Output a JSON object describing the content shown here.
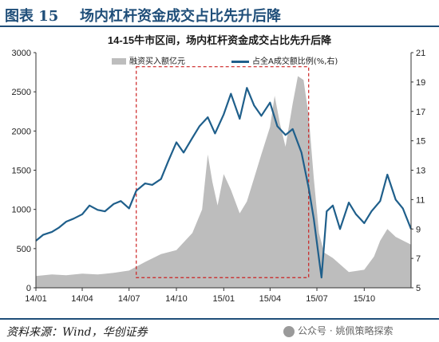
{
  "figure": {
    "number": "图表 15",
    "title": "场内杠杆资金成交占比先升后降",
    "source": "资料来源：Wind，华创证券",
    "watermark": "公众号 · 姚佩策略探索"
  },
  "colors": {
    "area": "#bdbdbd",
    "line": "#1f5f8b",
    "highlight_box": "#cc2222",
    "header": "#1f4e79"
  },
  "icons": [
    "wechat-icon"
  ],
  "chart_data": {
    "type": "area+line",
    "title": "14-15牛市区间，场内杠杆资金成交占比先升后降",
    "x_tick_labels": [
      "14/01",
      "14/04",
      "14/07",
      "14/10",
      "15/01",
      "15/04",
      "15/07",
      "15/10"
    ],
    "x_tick_dates": [
      "2014-01-01",
      "2014-04-01",
      "2014-07-01",
      "2014-10-01",
      "2015-01-01",
      "2015-04-01",
      "2015-07-01",
      "2015-10-01"
    ],
    "x_range": [
      "2014-01-01",
      "2015-12-31"
    ],
    "y_left": {
      "range": [
        0,
        3000
      ],
      "ticks": [
        0,
        500,
        1000,
        1500,
        2000,
        2500,
        3000
      ]
    },
    "y_right": {
      "range": [
        5,
        21
      ],
      "ticks": [
        5,
        7,
        9,
        11,
        13,
        15,
        17,
        19,
        21
      ]
    },
    "legend_position": "top",
    "grid": false,
    "highlight_box": {
      "x_start": "2014-07-15",
      "x_end": "2015-06-15",
      "y_left_range": [
        130,
        2820
      ]
    },
    "series": [
      {
        "name": "融资买入额亿元",
        "kind": "area",
        "axis": "left",
        "points": [
          [
            "2014-01-01",
            150
          ],
          [
            "2014-02-01",
            170
          ],
          [
            "2014-03-01",
            160
          ],
          [
            "2014-04-01",
            180
          ],
          [
            "2014-05-01",
            170
          ],
          [
            "2014-06-01",
            190
          ],
          [
            "2014-07-01",
            220
          ],
          [
            "2014-08-01",
            330
          ],
          [
            "2014-09-01",
            430
          ],
          [
            "2014-10-01",
            480
          ],
          [
            "2014-11-01",
            700
          ],
          [
            "2014-11-20",
            1000
          ],
          [
            "2014-12-01",
            1700
          ],
          [
            "2014-12-10",
            1350
          ],
          [
            "2014-12-20",
            1050
          ],
          [
            "2015-01-01",
            1450
          ],
          [
            "2015-01-15",
            1250
          ],
          [
            "2015-02-01",
            950
          ],
          [
            "2015-02-15",
            1100
          ],
          [
            "2015-03-01",
            1400
          ],
          [
            "2015-03-15",
            1700
          ],
          [
            "2015-04-01",
            2050
          ],
          [
            "2015-04-10",
            2450
          ],
          [
            "2015-04-20",
            2100
          ],
          [
            "2015-05-01",
            1800
          ],
          [
            "2015-05-15",
            2350
          ],
          [
            "2015-05-25",
            2700
          ],
          [
            "2015-06-05",
            2650
          ],
          [
            "2015-06-15",
            2200
          ],
          [
            "2015-06-25",
            1400
          ],
          [
            "2015-07-05",
            700
          ],
          [
            "2015-07-15",
            450
          ],
          [
            "2015-08-01",
            380
          ],
          [
            "2015-09-01",
            200
          ],
          [
            "2015-10-01",
            230
          ],
          [
            "2015-10-20",
            400
          ],
          [
            "2015-11-01",
            600
          ],
          [
            "2015-11-15",
            750
          ],
          [
            "2015-12-01",
            650
          ],
          [
            "2015-12-31",
            550
          ]
        ]
      },
      {
        "name": "占全A成交额比例(%,右)",
        "kind": "line",
        "axis": "right",
        "points": [
          [
            "2014-01-01",
            8.2
          ],
          [
            "2014-01-15",
            8.6
          ],
          [
            "2014-02-01",
            8.8
          ],
          [
            "2014-02-15",
            9.1
          ],
          [
            "2014-03-01",
            9.5
          ],
          [
            "2014-03-15",
            9.7
          ],
          [
            "2014-04-01",
            10.0
          ],
          [
            "2014-04-15",
            10.6
          ],
          [
            "2014-05-01",
            10.3
          ],
          [
            "2014-05-15",
            10.2
          ],
          [
            "2014-06-01",
            10.7
          ],
          [
            "2014-06-15",
            10.9
          ],
          [
            "2014-07-01",
            10.4
          ],
          [
            "2014-07-15",
            11.6
          ],
          [
            "2014-08-01",
            12.1
          ],
          [
            "2014-08-15",
            12.0
          ],
          [
            "2014-09-01",
            12.4
          ],
          [
            "2014-09-15",
            13.6
          ],
          [
            "2014-10-01",
            14.9
          ],
          [
            "2014-10-15",
            14.2
          ],
          [
            "2014-11-01",
            15.2
          ],
          [
            "2014-11-15",
            16.0
          ],
          [
            "2014-12-01",
            16.6
          ],
          [
            "2014-12-15",
            15.5
          ],
          [
            "2015-01-01",
            16.8
          ],
          [
            "2015-01-15",
            18.2
          ],
          [
            "2015-02-01",
            16.5
          ],
          [
            "2015-02-15",
            18.6
          ],
          [
            "2015-03-01",
            17.4
          ],
          [
            "2015-03-15",
            16.7
          ],
          [
            "2015-04-01",
            17.6
          ],
          [
            "2015-04-15",
            16.0
          ],
          [
            "2015-05-01",
            15.4
          ],
          [
            "2015-05-15",
            15.8
          ],
          [
            "2015-06-01",
            14.2
          ],
          [
            "2015-06-15",
            11.8
          ],
          [
            "2015-06-25",
            9.7
          ],
          [
            "2015-07-05",
            7.0
          ],
          [
            "2015-07-10",
            5.7
          ],
          [
            "2015-07-20",
            10.2
          ],
          [
            "2015-08-01",
            10.6
          ],
          [
            "2015-08-15",
            9.0
          ],
          [
            "2015-09-01",
            10.8
          ],
          [
            "2015-09-15",
            10.0
          ],
          [
            "2015-10-01",
            9.4
          ],
          [
            "2015-10-15",
            10.2
          ],
          [
            "2015-11-01",
            10.9
          ],
          [
            "2015-11-15",
            12.7
          ],
          [
            "2015-12-01",
            11.0
          ],
          [
            "2015-12-15",
            10.4
          ],
          [
            "2015-12-31",
            9.0
          ]
        ]
      }
    ]
  }
}
